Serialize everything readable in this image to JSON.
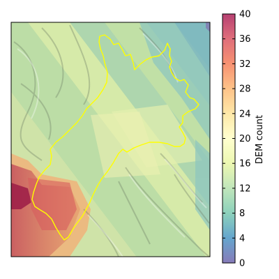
{
  "chart_data": {
    "type": "heatmap",
    "title": "",
    "xlabel": "",
    "ylabel": "",
    "colorbar": {
      "label": "DEM count",
      "range": [
        0,
        40
      ],
      "ticks": [
        0,
        4,
        8,
        12,
        16,
        20,
        24,
        28,
        32,
        36,
        40
      ],
      "colormap": [
        "#5e4fa2",
        "#3288bd",
        "#66c2a5",
        "#abdda4",
        "#e6f598",
        "#ffffbf",
        "#fee08b",
        "#fdae61",
        "#f46d43",
        "#d53e4f",
        "#9e0142"
      ]
    },
    "axes_ticks": "none",
    "overlay": {
      "type": "glacier outline",
      "color": "#ffff00"
    },
    "background": "hillshade"
  },
  "tick_labels": [
    "0",
    "4",
    "8",
    "12",
    "16",
    "20",
    "24",
    "28",
    "32",
    "36",
    "40"
  ]
}
